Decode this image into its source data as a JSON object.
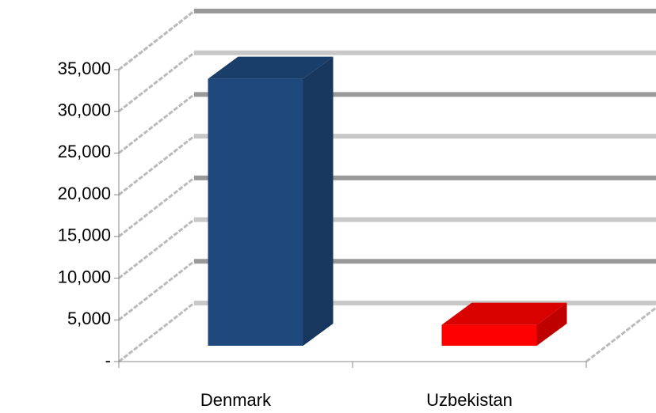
{
  "chart_data": {
    "type": "bar3d",
    "categories": [
      "Denmark",
      "Uzbekistan"
    ],
    "values": [
      32000,
      2500
    ],
    "colors": [
      "#1f497d",
      "#ff0000"
    ],
    "ylim": [
      0,
      35000
    ],
    "yticks": [
      {
        "value": 0,
        "label": "-"
      },
      {
        "value": 5000,
        "label": "5,000"
      },
      {
        "value": 10000,
        "label": "10,000"
      },
      {
        "value": 15000,
        "label": "15,000"
      },
      {
        "value": 20000,
        "label": "20,000"
      },
      {
        "value": 25000,
        "label": "25,000"
      },
      {
        "value": 30000,
        "label": "30,000"
      },
      {
        "value": 35000,
        "label": "35,000"
      }
    ],
    "grid": true
  }
}
